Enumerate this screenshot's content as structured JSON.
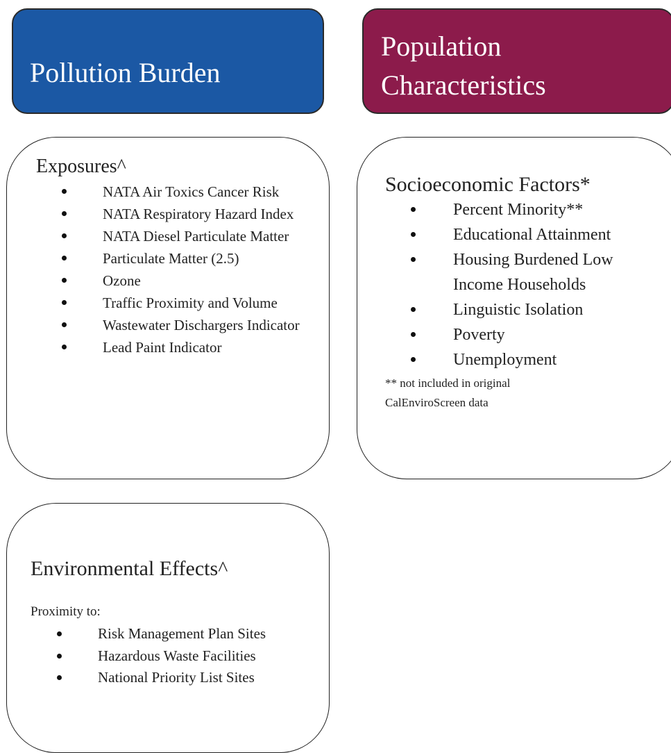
{
  "pollution_burden": {
    "title": "Pollution Burden"
  },
  "population_characteristics": {
    "title_lines": [
      "Population",
      "Characteristics"
    ]
  },
  "exposures": {
    "title": "Exposures^",
    "items": [
      "NATA Air Toxics Cancer Risk",
      "NATA Respiratory Hazard Index",
      "NATA Diesel Particulate Matter",
      "Particulate Matter (2.5)",
      "Ozone",
      "Traffic Proximity and Volume",
      "Wastewater Dischargers Indicator",
      "Lead Paint Indicator"
    ]
  },
  "socioeconomic_factors": {
    "title": "Socioeconomic Factors*",
    "items": [
      "Percent Minority**",
      "Educational Attainment",
      "Housing Burdened Low Income Households",
      "Linguistic Isolation",
      "Poverty",
      "Unemployment"
    ],
    "note_lines": [
      "** not included in original",
      "CalEnviroScreen data"
    ]
  },
  "environmental_effects": {
    "title": "Environmental Effects^",
    "intro": "Proximity to:",
    "items": [
      "Risk Management Plan Sites",
      "Hazardous Waste Facilities",
      "National Priority List Sites"
    ]
  }
}
